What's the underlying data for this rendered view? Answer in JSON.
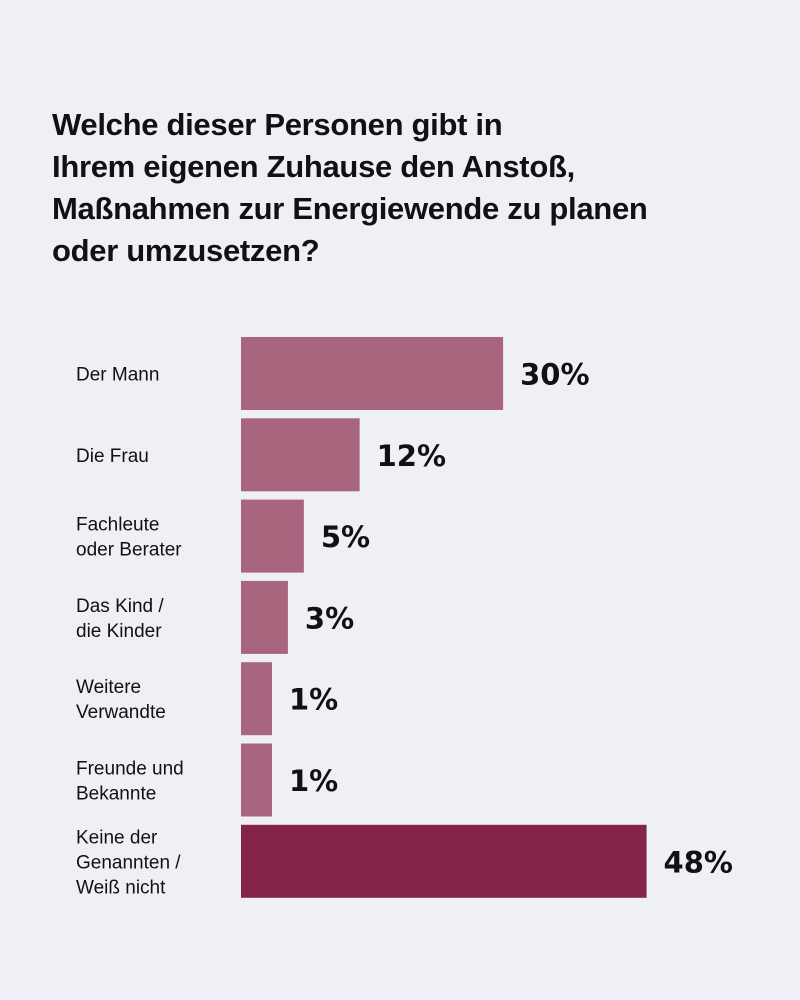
{
  "chart_data": {
    "type": "bar",
    "orientation": "horizontal",
    "title": "Welche dieser Personen gibt in Ihrem eigenen Zuhause den Anstoß, Maßnahmen zur Energiewende zu planen oder umzusetzen?",
    "title_lines": [
      "Welche dieser Personen gibt in",
      "Ihrem eigenen Zuhause den Anstoß,",
      "Maßnahmen zur Energiewende zu planen",
      "oder umzusetzen?"
    ],
    "xlabel": "",
    "ylabel": "",
    "grid": false,
    "unit": "%",
    "categories": [
      [
        "Der Mann"
      ],
      [
        "Die Frau"
      ],
      [
        "Fachleute",
        "oder Berater"
      ],
      [
        "Das Kind /",
        "die Kinder"
      ],
      [
        "Weitere",
        "Verwandte"
      ],
      [
        "Freunde und",
        "Bekannte"
      ],
      [
        "Keine der",
        "Genannten /",
        "Weiß nicht"
      ]
    ],
    "values": [
      30,
      12,
      5,
      3,
      1,
      1,
      48
    ],
    "value_labels": [
      "30%",
      "12%",
      "5%",
      "3%",
      "1%",
      "1%",
      "48%"
    ],
    "colors": [
      "#a8657e",
      "#a8657e",
      "#a8657e",
      "#a8657e",
      "#a8657e",
      "#a8657e",
      "#84244b"
    ]
  }
}
